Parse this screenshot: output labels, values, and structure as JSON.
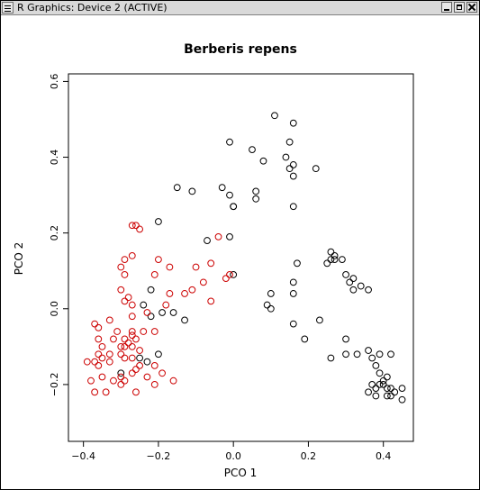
{
  "window": {
    "title": "R Graphics: Device 2 (ACTIVE)",
    "controls": [
      "minimize",
      "maximize",
      "close"
    ]
  },
  "chart_data": {
    "type": "scatter",
    "title": "Berberis repens",
    "xlabel": "PCO 1",
    "ylabel": "PCO 2",
    "xlim": [
      -0.44,
      0.48
    ],
    "ylim": [
      -0.35,
      0.62
    ],
    "xticks": [
      -0.4,
      -0.2,
      0.0,
      0.2,
      0.4
    ],
    "yticks": [
      -0.2,
      0.0,
      0.2,
      0.4,
      0.6
    ],
    "xtick_labels": [
      "−0.4",
      "−0.2",
      "0.0",
      "0.2",
      "0.4"
    ],
    "ytick_labels": [
      "−0.2",
      "0.0",
      "0.2",
      "0.4",
      "0.6"
    ],
    "grid": false,
    "marker": "open-circle",
    "series": [
      {
        "color": "#000000",
        "points": [
          [
            0.11,
            0.51
          ],
          [
            0.16,
            0.49
          ],
          [
            -0.01,
            0.44
          ],
          [
            0.05,
            0.42
          ],
          [
            0.15,
            0.44
          ],
          [
            0.08,
            0.39
          ],
          [
            0.14,
            0.4
          ],
          [
            0.16,
            0.38
          ],
          [
            0.22,
            0.37
          ],
          [
            0.15,
            0.37
          ],
          [
            0.16,
            0.35
          ],
          [
            -0.15,
            0.32
          ],
          [
            -0.03,
            0.32
          ],
          [
            -0.11,
            0.31
          ],
          [
            -0.01,
            0.3
          ],
          [
            0.06,
            0.31
          ],
          [
            0.06,
            0.29
          ],
          [
            0.0,
            0.27
          ],
          [
            0.0,
            0.27
          ],
          [
            0.16,
            0.27
          ],
          [
            -0.2,
            0.23
          ],
          [
            -0.01,
            0.19
          ],
          [
            -0.07,
            0.18
          ],
          [
            0.26,
            0.15
          ],
          [
            0.27,
            0.14
          ],
          [
            0.26,
            0.13
          ],
          [
            0.27,
            0.13
          ],
          [
            0.29,
            0.13
          ],
          [
            0.17,
            0.12
          ],
          [
            0.25,
            0.12
          ],
          [
            0.3,
            0.09
          ],
          [
            0.32,
            0.08
          ],
          [
            0.31,
            0.07
          ],
          [
            0.16,
            0.07
          ],
          [
            0.34,
            0.06
          ],
          [
            0.32,
            0.05
          ],
          [
            0.36,
            0.05
          ],
          [
            0.16,
            0.04
          ],
          [
            0.0,
            0.09
          ],
          [
            0.1,
            0.04
          ],
          [
            -0.22,
            0.05
          ],
          [
            -0.24,
            0.01
          ],
          [
            -0.19,
            -0.01
          ],
          [
            -0.22,
            -0.02
          ],
          [
            -0.16,
            -0.01
          ],
          [
            -0.13,
            -0.03
          ],
          [
            0.09,
            0.01
          ],
          [
            0.1,
            0.0
          ],
          [
            0.16,
            -0.04
          ],
          [
            0.23,
            -0.03
          ],
          [
            0.19,
            -0.08
          ],
          [
            0.3,
            -0.08
          ],
          [
            0.26,
            -0.13
          ],
          [
            0.3,
            -0.12
          ],
          [
            0.33,
            -0.12
          ],
          [
            0.36,
            -0.11
          ],
          [
            0.37,
            -0.13
          ],
          [
            0.39,
            -0.12
          ],
          [
            0.42,
            -0.12
          ],
          [
            0.38,
            -0.15
          ],
          [
            0.39,
            -0.17
          ],
          [
            0.4,
            -0.19
          ],
          [
            0.41,
            -0.18
          ],
          [
            0.39,
            -0.2
          ],
          [
            0.38,
            -0.21
          ],
          [
            0.37,
            -0.2
          ],
          [
            0.4,
            -0.2
          ],
          [
            0.41,
            -0.21
          ],
          [
            0.42,
            -0.21
          ],
          [
            0.38,
            -0.23
          ],
          [
            0.36,
            -0.22
          ],
          [
            0.41,
            -0.23
          ],
          [
            0.42,
            -0.23
          ],
          [
            0.43,
            -0.22
          ],
          [
            0.45,
            -0.21
          ],
          [
            0.45,
            -0.24
          ],
          [
            -0.3,
            -0.17
          ],
          [
            -0.23,
            -0.14
          ],
          [
            -0.25,
            -0.13
          ],
          [
            -0.2,
            -0.12
          ]
        ]
      },
      {
        "color": "#cc0000",
        "points": [
          [
            -0.27,
            0.22
          ],
          [
            -0.26,
            0.22
          ],
          [
            -0.25,
            0.21
          ],
          [
            -0.2,
            0.13
          ],
          [
            -0.29,
            0.13
          ],
          [
            -0.27,
            0.14
          ],
          [
            -0.3,
            0.11
          ],
          [
            -0.17,
            0.11
          ],
          [
            -0.21,
            0.09
          ],
          [
            -0.29,
            0.09
          ],
          [
            -0.04,
            0.19
          ],
          [
            -0.06,
            0.12
          ],
          [
            -0.1,
            0.11
          ],
          [
            -0.02,
            0.08
          ],
          [
            -0.01,
            0.09
          ],
          [
            -0.08,
            0.07
          ],
          [
            -0.11,
            0.05
          ],
          [
            -0.13,
            0.04
          ],
          [
            -0.17,
            0.04
          ],
          [
            -0.06,
            0.02
          ],
          [
            -0.28,
            0.03
          ],
          [
            -0.29,
            0.02
          ],
          [
            -0.3,
            0.05
          ],
          [
            -0.18,
            0.01
          ],
          [
            -0.27,
            0.01
          ],
          [
            -0.23,
            -0.01
          ],
          [
            -0.27,
            -0.02
          ],
          [
            -0.33,
            -0.03
          ],
          [
            -0.36,
            -0.05
          ],
          [
            -0.37,
            -0.04
          ],
          [
            -0.31,
            -0.06
          ],
          [
            -0.27,
            -0.06
          ],
          [
            -0.24,
            -0.06
          ],
          [
            -0.21,
            -0.06
          ],
          [
            -0.27,
            -0.07
          ],
          [
            -0.26,
            -0.08
          ],
          [
            -0.29,
            -0.08
          ],
          [
            -0.32,
            -0.08
          ],
          [
            -0.36,
            -0.08
          ],
          [
            -0.28,
            -0.09
          ],
          [
            -0.3,
            -0.1
          ],
          [
            -0.27,
            -0.1
          ],
          [
            -0.25,
            -0.11
          ],
          [
            -0.29,
            -0.1
          ],
          [
            -0.35,
            -0.1
          ],
          [
            -0.3,
            -0.12
          ],
          [
            -0.27,
            -0.13
          ],
          [
            -0.36,
            -0.12
          ],
          [
            -0.35,
            -0.13
          ],
          [
            -0.33,
            -0.12
          ],
          [
            -0.29,
            -0.13
          ],
          [
            -0.37,
            -0.14
          ],
          [
            -0.39,
            -0.14
          ],
          [
            -0.36,
            -0.15
          ],
          [
            -0.33,
            -0.14
          ],
          [
            -0.25,
            -0.15
          ],
          [
            -0.21,
            -0.15
          ],
          [
            -0.26,
            -0.16
          ],
          [
            -0.27,
            -0.17
          ],
          [
            -0.35,
            -0.18
          ],
          [
            -0.3,
            -0.18
          ],
          [
            -0.29,
            -0.19
          ],
          [
            -0.32,
            -0.19
          ],
          [
            -0.19,
            -0.17
          ],
          [
            -0.23,
            -0.18
          ],
          [
            -0.16,
            -0.19
          ],
          [
            -0.21,
            -0.2
          ],
          [
            -0.3,
            -0.2
          ],
          [
            -0.26,
            -0.22
          ],
          [
            -0.34,
            -0.22
          ],
          [
            -0.37,
            -0.22
          ],
          [
            -0.38,
            -0.19
          ]
        ]
      }
    ]
  }
}
